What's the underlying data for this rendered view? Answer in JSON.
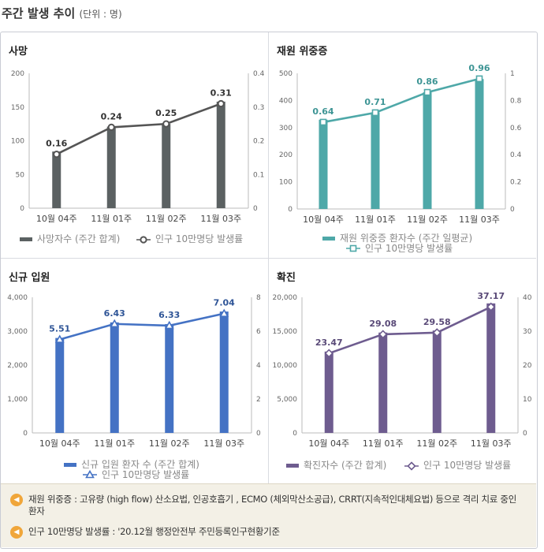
{
  "header": {
    "title": "주간 발생 추이",
    "unit": "(단위 : 명)"
  },
  "chart_data": [
    {
      "type": "bar+line",
      "title": "사망",
      "color": "#5b6162",
      "categories": [
        "10월 04주",
        "11월 01주",
        "11월 02주",
        "11월 03주"
      ],
      "series": [
        {
          "name": "사망자수 (주간 합계)",
          "type": "bar",
          "axis": "left",
          "values": [
            84,
            121,
            125,
            158
          ]
        },
        {
          "name": "인구 10만명당 발생률",
          "type": "line",
          "axis": "right",
          "values": [
            0.16,
            0.24,
            0.25,
            0.31
          ]
        }
      ],
      "labels": [
        "0.16",
        "0.24",
        "0.25",
        "0.31"
      ],
      "ylim": [
        0,
        200
      ],
      "yticks": [
        0,
        50,
        100,
        150,
        200
      ],
      "y2lim": [
        0,
        0.4
      ],
      "y2ticks": [
        0,
        0.1,
        0.2,
        0.3,
        0.4
      ],
      "legend": [
        "사망자수 (주간 합계)",
        "인구 10만명당 발생률"
      ],
      "legend_layout": "inline",
      "marker": "circle"
    },
    {
      "type": "bar+line",
      "title": "재원 위중증",
      "color": "#4ea8a8",
      "categories": [
        "10월 04주",
        "11월 01주",
        "11월 02주",
        "11월 03주"
      ],
      "series": [
        {
          "name": "재원 위중증 환자수 (주간 일평균)",
          "type": "bar",
          "axis": "left",
          "values": [
            329,
            356,
            430,
            479
          ]
        },
        {
          "name": "인구 10만명당 발생률",
          "type": "line",
          "axis": "right",
          "values": [
            0.64,
            0.71,
            0.86,
            0.96
          ]
        }
      ],
      "labels": [
        "0.64",
        "0.71",
        "0.86",
        "0.96"
      ],
      "ylim": [
        0,
        500
      ],
      "yticks": [
        0,
        100,
        200,
        300,
        400,
        500
      ],
      "y2lim": [
        0,
        1
      ],
      "y2ticks": [
        0,
        0.2,
        0.4,
        0.6,
        0.8,
        1
      ],
      "legend": [
        "재원 위중증 환자수 (주간 일평균)",
        "인구 10만명당 발생률"
      ],
      "legend_layout": "stacked",
      "marker": "square"
    },
    {
      "type": "bar+line",
      "title": "신규 입원",
      "color": "#4472c4",
      "categories": [
        "10월 04주",
        "11월 01주",
        "11월 02주",
        "11월 03주"
      ],
      "series": [
        {
          "name": "신규 입원 환자 수 (주간 합계)",
          "type": "bar",
          "axis": "left",
          "values": [
            2800,
            3260,
            3210,
            3580
          ]
        },
        {
          "name": "인구 10만명당 발생률",
          "type": "line",
          "axis": "right",
          "values": [
            5.51,
            6.43,
            6.33,
            7.04
          ]
        }
      ],
      "labels": [
        "5.51",
        "6.43",
        "6.33",
        "7.04"
      ],
      "ylim": [
        0,
        4000
      ],
      "yticks": [
        "0",
        "1,000",
        "2,000",
        "3,000",
        "4,000"
      ],
      "y2lim": [
        0,
        8
      ],
      "y2ticks": [
        0,
        2,
        4,
        6,
        8
      ],
      "legend": [
        "신규 입원 환자 수 (주간 합계)",
        "인구 10만명당 발생률"
      ],
      "legend_layout": "stacked",
      "marker": "triangle"
    },
    {
      "type": "bar+line",
      "title": "확진",
      "color": "#6e5c8f",
      "categories": [
        "10월 04주",
        "11월 01주",
        "11월 02주",
        "11월 03주"
      ],
      "series": [
        {
          "name": "확진자수 (주간 합계)",
          "type": "bar",
          "axis": "left",
          "values": [
            12000,
            14800,
            15100,
            19100
          ]
        },
        {
          "name": "인구 10만명당 발생률",
          "type": "line",
          "axis": "right",
          "values": [
            23.47,
            29.08,
            29.58,
            37.17
          ]
        }
      ],
      "labels": [
        "23.47",
        "29.08",
        "29.58",
        "37.17"
      ],
      "ylim": [
        0,
        20000
      ],
      "yticks": [
        "0",
        "5,000",
        "10,000",
        "15,000",
        "20,000"
      ],
      "y2lim": [
        0,
        40
      ],
      "y2ticks": [
        0,
        10,
        20,
        30,
        40
      ],
      "legend": [
        "확진자수 (주간 합계)",
        "인구 10만명당 발생률"
      ],
      "legend_layout": "inline",
      "marker": "diamond"
    }
  ],
  "notes": [
    "재원 위중증 : 고유량 (high flow) 산소요법, 인공호흡기 , ECMO (체외막산소공급), CRRT(지속적인대체요법) 등으로 격리 치료 중인 환자",
    "인구 10만명당 발생률 : '20.12월 행정안전부 주민등록인구현황기준"
  ]
}
